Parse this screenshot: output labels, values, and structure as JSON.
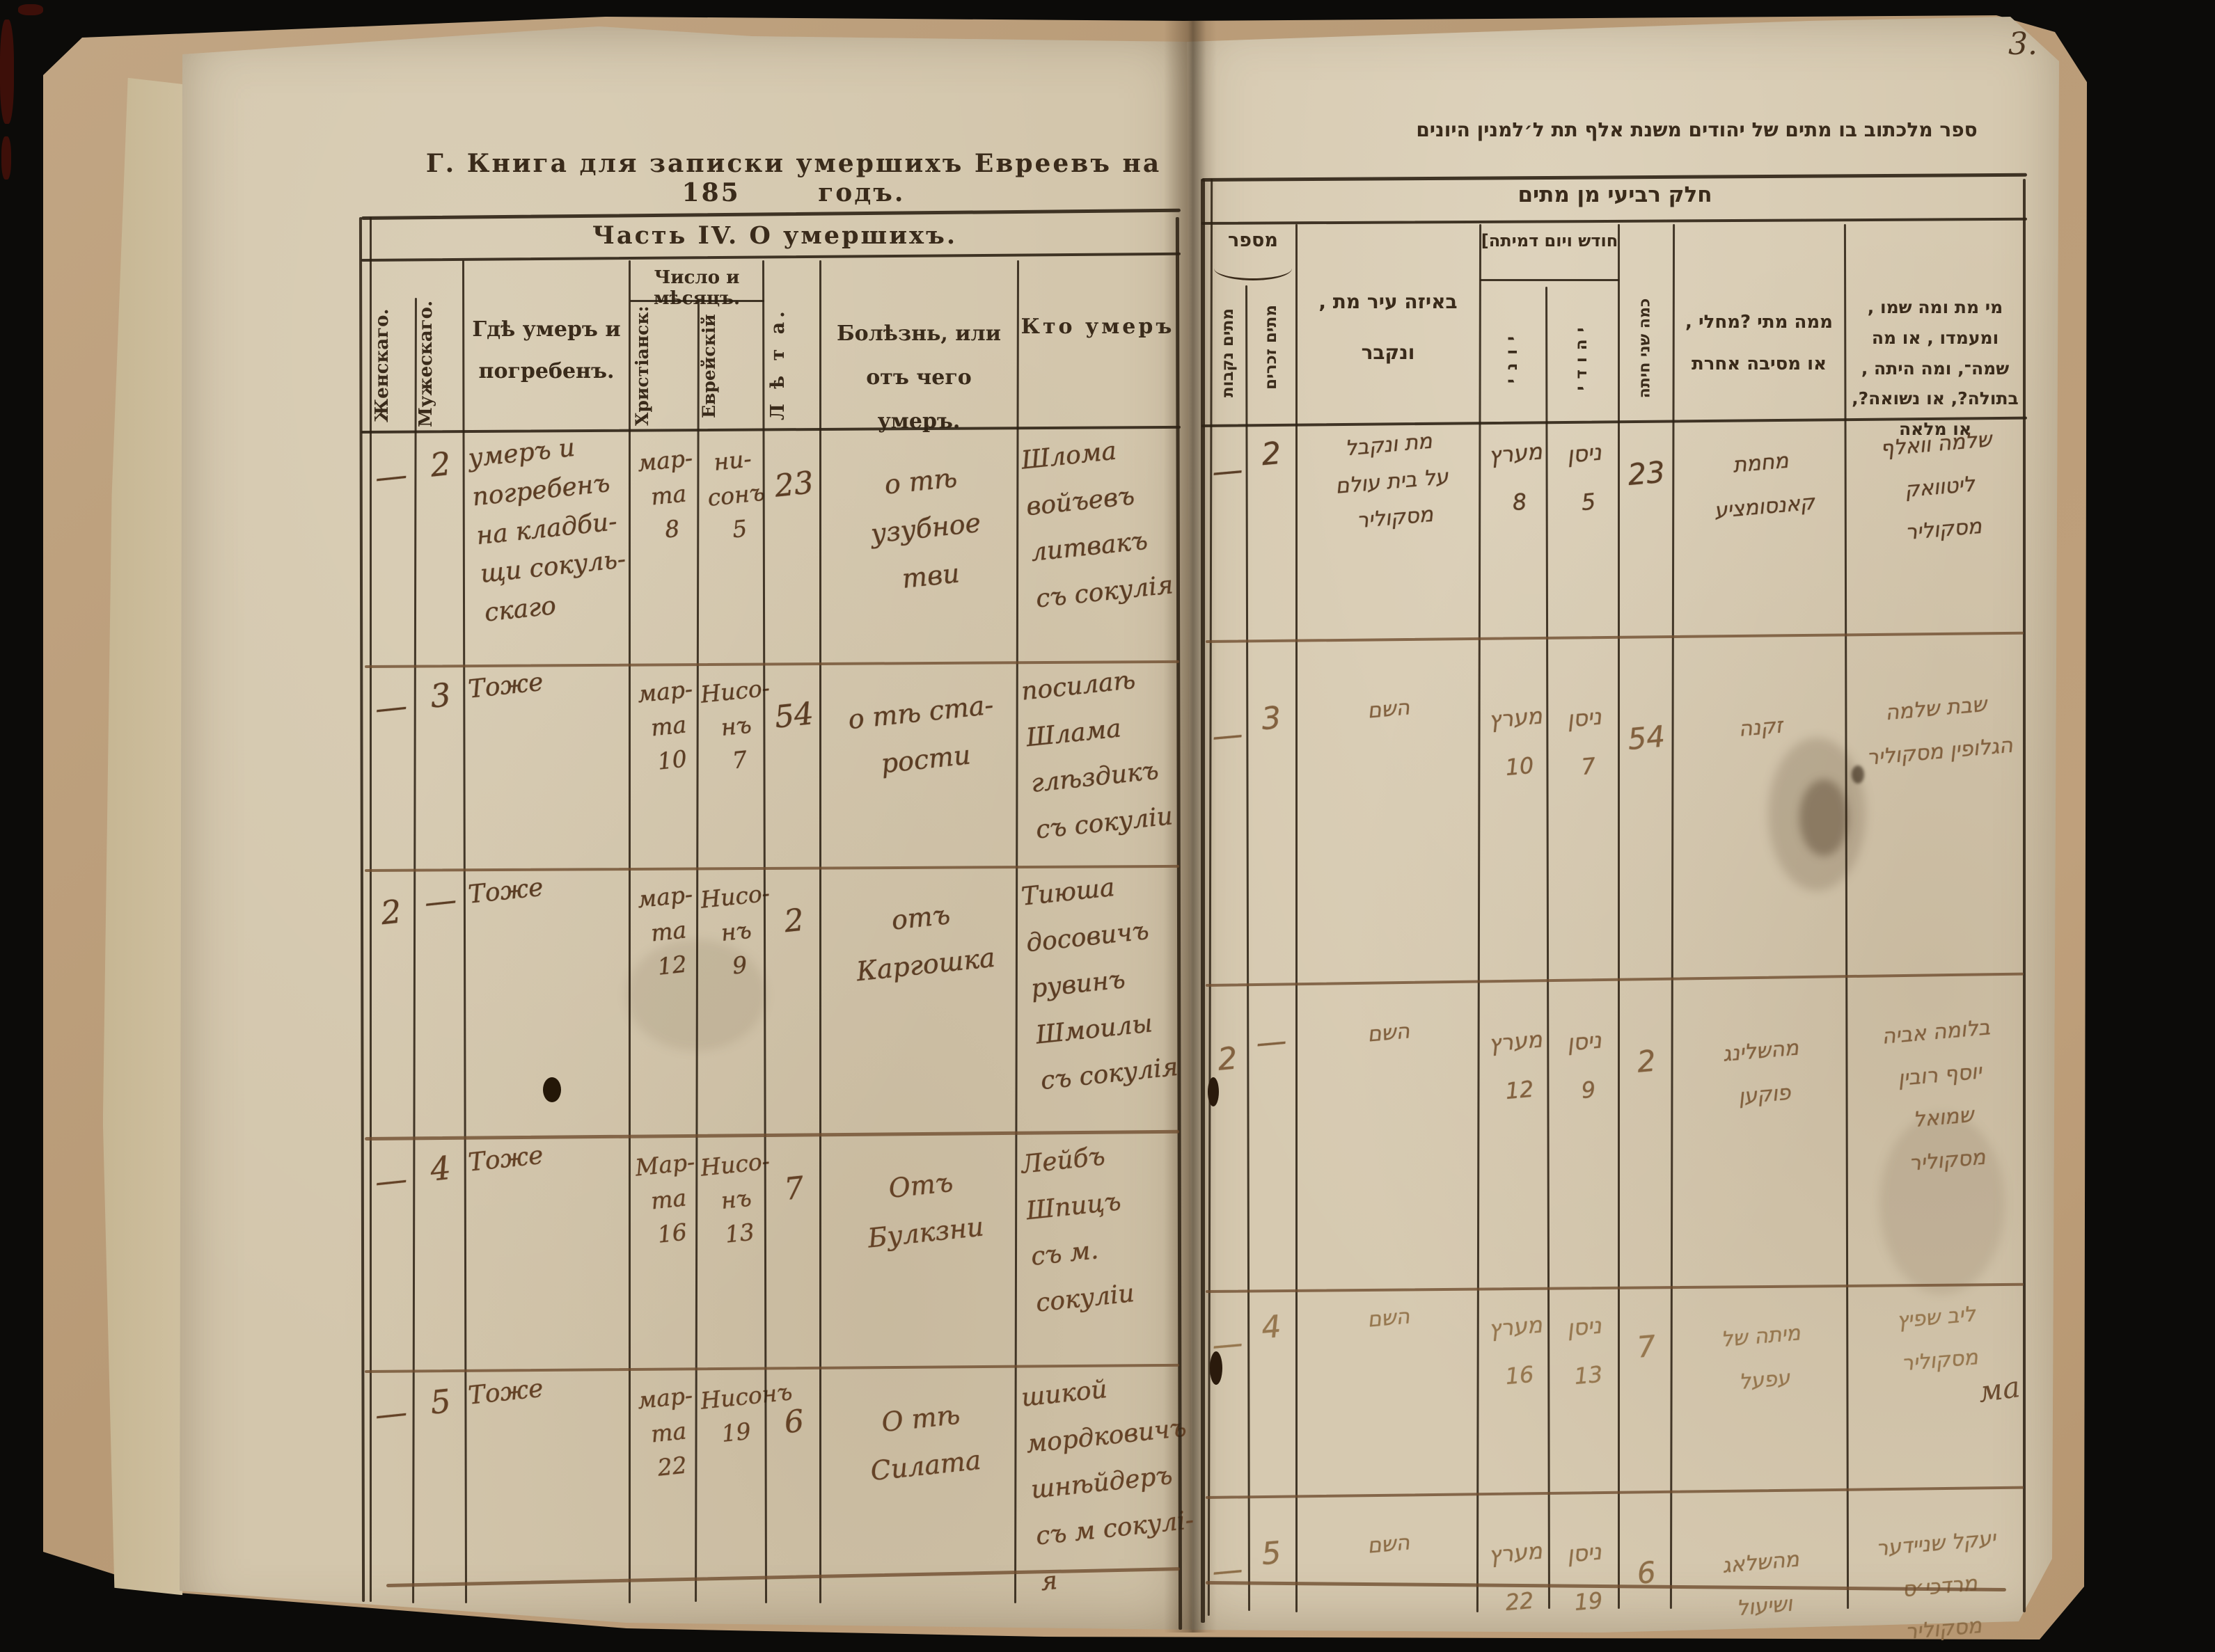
{
  "photo": {
    "page_corner_number": "3.",
    "margin_scribble": "ма"
  },
  "palette": {
    "backdrop": "#0c0b09",
    "cover": "#bb9e7c",
    "paper": "#d3c6ac",
    "printed_ink": "#3a2b1b",
    "manuscript_ink": "#5b3d24",
    "faded_ink": "#8d6e48",
    "table_line": "#2e2215",
    "hand_line": "#6f4e30"
  },
  "titles": {
    "russian_title": "Г. Книга для записки умершихъ Евреевъ на 185",
    "russian_title_suffix": "годъ.",
    "hebrew_title": "ספר מלכתוב בו מתים של יהודים משנת אלף תת ל׳למנין היונים",
    "left_section": "Часть IV. О умершихъ.",
    "right_section": "חלק רביעי מן מתים"
  },
  "left_table": {
    "headers": {
      "female": "Женскаго.",
      "male": "Мужескаго.",
      "place": "Гдѣ умеръ и\nпогребенъ.",
      "date_group": "Число и мѣсяцъ.",
      "christian": "Христіанск:",
      "jewish": "Еврейскій",
      "years": "Л ѣ т а.",
      "illness": "Болѣзнь, или\nотъ чего умеръ.",
      "who": "Кто умеръ"
    },
    "rows": [
      {
        "female": "—",
        "male": "2",
        "place": "умеръ и\nпогребенъ\nна кладби-\nщи сокуль-\nскаго",
        "christian": "мар-\nта\n8",
        "jewish": "ни-\nсонъ\n5",
        "years": "23",
        "illness": "о тѣ\nузубное\nтви",
        "who": "Шлома\nвойъевъ\nлитвакъ\nсъ сокулія"
      },
      {
        "female": "—",
        "male": "3",
        "place": "Тоже",
        "christian": "мар-\nта\n10",
        "jewish": "Нисо-\nнъ\n7",
        "years": "54",
        "illness": "о тѣ ста-\nрости",
        "who": "посилаѣ\nШлама\nглѣздикъ\nсъ сокуліи"
      },
      {
        "female": "2",
        "male": "—",
        "place": "Тоже",
        "christian": "мар-\nта\n12",
        "jewish": "Нисо-\nнъ\n9",
        "years": "2",
        "illness": "отъ\nКаргошка",
        "who": "Тиюша\nдосовичъ\nрувинъ\nШмоилы\nсъ сокулія"
      },
      {
        "female": "—",
        "male": "4",
        "place": "Тоже",
        "christian": "Мар-\nта\n16",
        "jewish": "Нисо-\nнъ\n13",
        "years": "7",
        "illness": "Отъ\nБулкзни",
        "who": "Лейбъ\nШпицъ\nсъ м.\nсокуліи"
      },
      {
        "female": "—",
        "male": "5",
        "place": "Тоже",
        "christian": "мар-\nта\n22",
        "jewish": "Нисонъ\n19",
        "years": "6",
        "illness": "О тѣ\nСилата",
        "who": "шикой\nмордковичъ\nшнѣйдеръ\nсъ м сокулі-\nя"
      }
    ]
  },
  "right_table": {
    "headers": {
      "number_group": "מספר",
      "females": "מתים נקבות",
      "males": "מתים זכרים",
      "city": "באיזה עיר מת ,\nונקבר",
      "date_group": "חודש ויום דמיתה]",
      "greek": "יוני",
      "jewish": "יהודי",
      "years": "כמה שני חיתה",
      "cause": "ממה מתי ?מחלי ,\nאו מסיבה אחרת",
      "who": "מי מת ומה שמו ,\nומעמדו , או מה\nשמה־, ומה היתה ,\nבתולה?, או נשואה?,\nאו מלאה"
    },
    "rows": [
      {
        "females": "—",
        "males": "2",
        "city": "מת ונקבל\nעל בית עולם\nמסקוליר",
        "greek_date": "מערץ\n8",
        "jewish_date": "ניסן\n5",
        "years": "23",
        "cause": "מחמת\nקאנסומציע",
        "who": "שלמה וואלף\nליטוואק\nמסקוליר"
      },
      {
        "females": "—",
        "males": "3",
        "city": "השם",
        "greek_date": "מערץ\n10",
        "jewish_date": "ניסן\n7",
        "years": "54",
        "cause": "זקנה",
        "who": "שבת שלמה\nהגלופין מסקוליר"
      },
      {
        "females": "2",
        "males": "—",
        "city": "השם",
        "greek_date": "מערץ\n12",
        "jewish_date": "ניסן\n9",
        "years": "2",
        "cause": "מהשלינג\nפוקען",
        "who": "בלומה אביה\nיוסף רובין\nשמואל\nמסקוליר"
      },
      {
        "females": "—",
        "males": "4",
        "city": "השם",
        "greek_date": "מערץ\n16",
        "jewish_date": "ניסן\n13",
        "years": "7",
        "cause": "מיתה של\nעפעל",
        "who": "ליב שפיץ\nמסקוליר"
      },
      {
        "females": "—",
        "males": "5",
        "city": "השם",
        "greek_date": "מערץ\n22",
        "jewish_date": "ניסן\n19",
        "years": "6",
        "cause": "מהשלאג\nושיעול",
        "who": "יעקל שניידער\nמרדכי׳ס\nמסקוליר"
      }
    ]
  }
}
